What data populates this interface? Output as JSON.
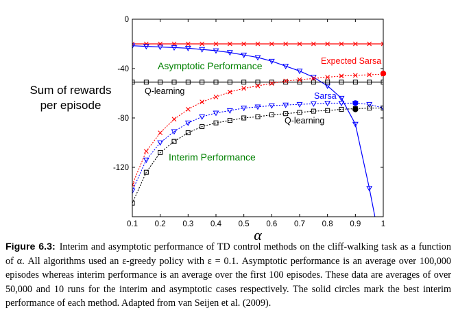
{
  "figure": {
    "caption_label": "Figure 6.3:",
    "caption_text": "Interim and asymptotic performance of TD control methods on the cliff-walking task as a function of α. All algorithms used an ε-greedy policy with ε = 0.1. Asymptotic performance is an average over 100,000 episodes whereas interim performance is an average over the first 100 episodes. These data are averages of over 50,000 and 10 runs for the interim and asymptotic cases respectively. The solid circles mark the best interim performance of each method. Adapted from van Seijen et al. (2009)."
  },
  "chart_data": {
    "type": "line",
    "xlabel": "α",
    "ylabel_line1": "Sum of rewards",
    "ylabel_line2": "per episode",
    "xlim": [
      0.1,
      1.0
    ],
    "ylim": [
      -160,
      0
    ],
    "xticks": [
      0.1,
      0.2,
      0.3,
      0.4,
      0.5,
      0.6,
      0.7,
      0.8,
      0.9,
      1
    ],
    "xtick_labels": [
      "0.1",
      "0.2",
      "0.3",
      "0.4",
      "0.5",
      "0.6",
      "0.7",
      "0.8",
      "0.9",
      "1"
    ],
    "yticks": [
      0,
      -40,
      -80,
      -120
    ],
    "ytick_labels": [
      "0",
      "-40",
      "-80",
      "-120"
    ],
    "grid": false,
    "colors": {
      "expected_sarsa": "#ff0000",
      "sarsa": "#0000ff",
      "q_learning": "#000000",
      "annotation": "#008000"
    },
    "annotations": {
      "asymptotic": "Asymptotic Performance",
      "interim": "Interim Performance",
      "expected_sarsa": "Expected Sarsa",
      "sarsa": "Sarsa",
      "q_learning_asymptotic": "Q-learning",
      "q_learning_interim": "Q-learning"
    },
    "series": [
      {
        "id": "esarsa-asym",
        "method": "expected_sarsa",
        "kind": "asymptotic",
        "marker": "x",
        "line": "solid",
        "x": [
          0.1,
          0.15,
          0.2,
          0.25,
          0.3,
          0.35,
          0.4,
          0.45,
          0.5,
          0.55,
          0.6,
          0.65,
          0.7,
          0.75,
          0.8,
          0.85,
          0.9,
          0.95,
          1.0
        ],
        "y": [
          -20,
          -20,
          -20,
          -20,
          -20,
          -20,
          -20,
          -20,
          -20,
          -20,
          -20,
          -20,
          -20,
          -20,
          -20,
          -20,
          -20,
          -20,
          -20
        ]
      },
      {
        "id": "sarsa-asym",
        "method": "sarsa",
        "kind": "asymptotic",
        "marker": "triangle",
        "line": "solid",
        "x": [
          0.1,
          0.15,
          0.2,
          0.25,
          0.3,
          0.35,
          0.4,
          0.45,
          0.5,
          0.55,
          0.6,
          0.65,
          0.7,
          0.75,
          0.8,
          0.85,
          0.9,
          0.95
        ],
        "y": [
          -21.5,
          -22,
          -22.5,
          -23,
          -23.5,
          -24.5,
          -25.5,
          -27,
          -29,
          -31,
          -34,
          -38,
          -42,
          -47,
          -54,
          -64,
          -85,
          -137
        ],
        "tail": [
          0.97,
          -160
        ]
      },
      {
        "id": "q-asym",
        "method": "q_learning",
        "kind": "asymptotic",
        "marker": "square",
        "line": "solid",
        "x": [
          0.1,
          0.15,
          0.2,
          0.25,
          0.3,
          0.35,
          0.4,
          0.45,
          0.5,
          0.55,
          0.6,
          0.65,
          0.7,
          0.75,
          0.8,
          0.85,
          0.9,
          0.95,
          1.0
        ],
        "y": [
          -51,
          -51,
          -51,
          -51,
          -51,
          -51,
          -51,
          -51,
          -51,
          -51,
          -51,
          -51,
          -51,
          -51,
          -51,
          -51,
          -51,
          -51,
          -51
        ]
      },
      {
        "id": "esarsa-interim",
        "method": "expected_sarsa",
        "kind": "interim",
        "marker": "x",
        "line": "dotted",
        "x": [
          0.1,
          0.15,
          0.2,
          0.25,
          0.3,
          0.35,
          0.4,
          0.45,
          0.5,
          0.55,
          0.6,
          0.65,
          0.7,
          0.75,
          0.8,
          0.85,
          0.9,
          0.95,
          1.0
        ],
        "y": [
          -134,
          -107,
          -92,
          -81,
          -73,
          -67,
          -63,
          -59,
          -56,
          -54,
          -52,
          -50,
          -49,
          -48,
          -47,
          -46,
          -45.5,
          -45,
          -44.5
        ]
      },
      {
        "id": "sarsa-interim",
        "method": "sarsa",
        "kind": "interim",
        "marker": "triangle",
        "line": "dotted",
        "x": [
          0.1,
          0.15,
          0.2,
          0.25,
          0.3,
          0.35,
          0.4,
          0.45,
          0.5,
          0.55,
          0.6,
          0.65,
          0.7,
          0.75,
          0.8,
          0.85,
          0.9,
          0.95,
          1.0
        ],
        "y": [
          -139,
          -114,
          -100,
          -91,
          -84,
          -79,
          -76,
          -74,
          -72,
          -71,
          -70,
          -69.5,
          -69,
          -68.5,
          -68,
          -68,
          -68,
          -69,
          -72
        ]
      },
      {
        "id": "q-interim",
        "method": "q_learning",
        "kind": "interim",
        "marker": "square",
        "line": "dotted",
        "x": [
          0.1,
          0.15,
          0.2,
          0.25,
          0.3,
          0.35,
          0.4,
          0.45,
          0.5,
          0.55,
          0.6,
          0.65,
          0.7,
          0.75,
          0.8,
          0.85,
          0.9,
          0.95,
          1.0
        ],
        "y": [
          -149,
          -124,
          -108,
          -99,
          -92,
          -87,
          -84,
          -82,
          -80,
          -79,
          -77.5,
          -76.5,
          -75.5,
          -74.5,
          -74,
          -73,
          -72.5,
          -72,
          -72
        ]
      }
    ],
    "best_points": [
      {
        "id": "best-esarsa",
        "method": "expected_sarsa",
        "x": 1.0,
        "y": -44
      },
      {
        "id": "best-sarsa",
        "method": "sarsa",
        "x": 0.9,
        "y": -68
      },
      {
        "id": "best-q",
        "method": "q_learning",
        "x": 0.9,
        "y": -73
      }
    ]
  }
}
